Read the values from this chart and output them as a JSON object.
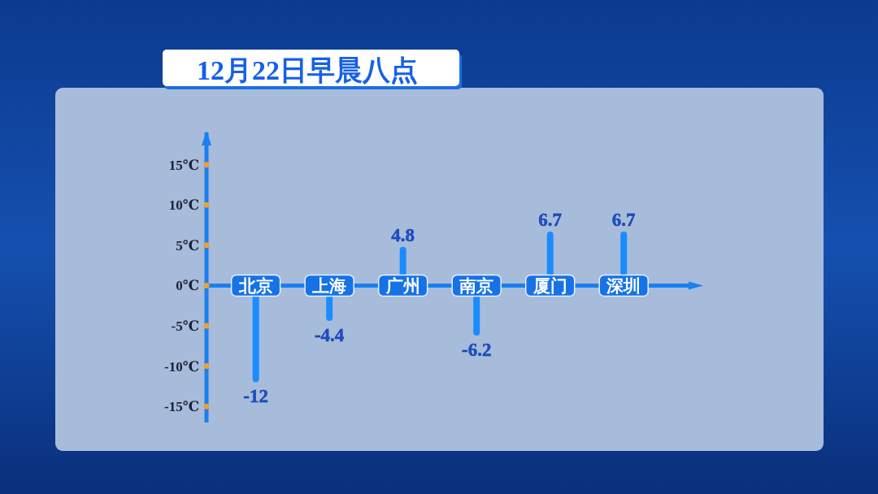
{
  "chart_data": {
    "type": "bar",
    "title": "12月22日早晨八点",
    "categories": [
      "北京",
      "上海",
      "广州",
      "南京",
      "厦门",
      "深圳"
    ],
    "values": [
      -12,
      -4.4,
      4.8,
      -6.2,
      6.7,
      6.7
    ],
    "color": "#1a8cff",
    "ylim": [
      -17,
      19
    ],
    "yticks": [
      {
        "value": -15,
        "label": "-15℃"
      },
      {
        "value": -10,
        "label": "-10℃"
      },
      {
        "value": -5,
        "label": "-5℃"
      },
      {
        "value": 0,
        "label": "0℃"
      },
      {
        "value": 5,
        "label": "5℃"
      },
      {
        "value": 10,
        "label": "10℃"
      },
      {
        "value": 15,
        "label": "15℃"
      }
    ],
    "data_labels": true
  }
}
